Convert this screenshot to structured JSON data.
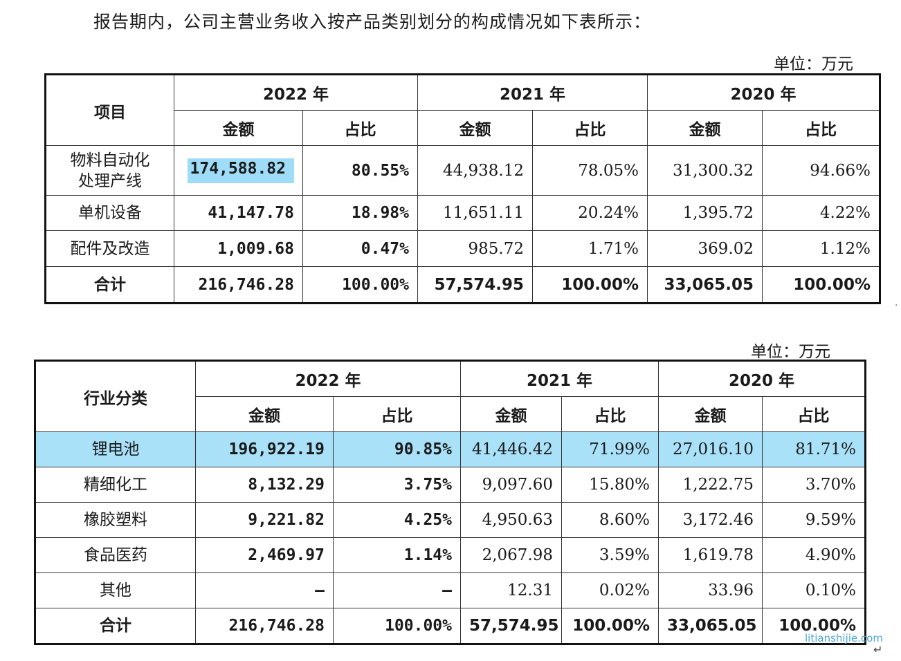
{
  "intro_text": "报告期内，公司主营业务收入按产品类别划分的构成情况如下表所示：",
  "table1": {
    "unit": "单位：万元",
    "item_header": "项目",
    "years": [
      "2022 年",
      "2021 年",
      "2020 年"
    ],
    "amount_header": "金额",
    "ratio_header": "占比",
    "rows": [
      {
        "label": "物料自动化处理产线",
        "label_line1": "物料自动化",
        "label_line2": "处理产线",
        "v": [
          "174,588.82",
          "80.55%",
          "44,938.12",
          "78.05%",
          "31,300.32",
          "94.66%"
        ]
      },
      {
        "label": "单机设备",
        "v": [
          "41,147.78",
          "18.98%",
          "11,651.11",
          "20.24%",
          "1,395.72",
          "4.22%"
        ]
      },
      {
        "label": "配件及改造",
        "v": [
          "1,009.68",
          "0.47%",
          "985.72",
          "1.71%",
          "369.02",
          "1.12%"
        ]
      },
      {
        "label": "合计",
        "v": [
          "216,746.28",
          "100.00%",
          "57,574.95",
          "100.00%",
          "33,065.05",
          "100.00%"
        ]
      }
    ]
  },
  "table2": {
    "unit": "单位：万元",
    "item_header": "行业分类",
    "years": [
      "2022 年",
      "2021 年",
      "2020 年"
    ],
    "amount_header": "金额",
    "ratio_header": "占比",
    "rows": [
      {
        "label": "锂电池",
        "v": [
          "196,922.19",
          "90.85%",
          "41,446.42",
          "71.99%",
          "27,016.10",
          "81.71%"
        ]
      },
      {
        "label": "精细化工",
        "v": [
          "8,132.29",
          "3.75%",
          "9,097.60",
          "15.80%",
          "1,222.75",
          "3.70%"
        ]
      },
      {
        "label": "橡胶塑料",
        "v": [
          "9,221.82",
          "4.25%",
          "4,950.63",
          "8.60%",
          "3,172.46",
          "9.59%"
        ]
      },
      {
        "label": "食品医药",
        "v": [
          "2,469.97",
          "1.14%",
          "2,067.98",
          "3.59%",
          "1,619.78",
          "4.90%"
        ]
      },
      {
        "label": "其他",
        "v": [
          "–",
          "–",
          "12.31",
          "0.02%",
          "33.96",
          "0.10%"
        ]
      },
      {
        "label": "合计",
        "v": [
          "216,746.28",
          "100.00%",
          "57,574.95",
          "100.00%",
          "33,065.05",
          "100.00%"
        ]
      }
    ]
  },
  "colors": {
    "highlight": "#9fdcf7",
    "watermark": "#4ca8d8"
  },
  "watermark": "litianshijie.com",
  "return_symbol": "↵",
  "edge_mark": "·"
}
